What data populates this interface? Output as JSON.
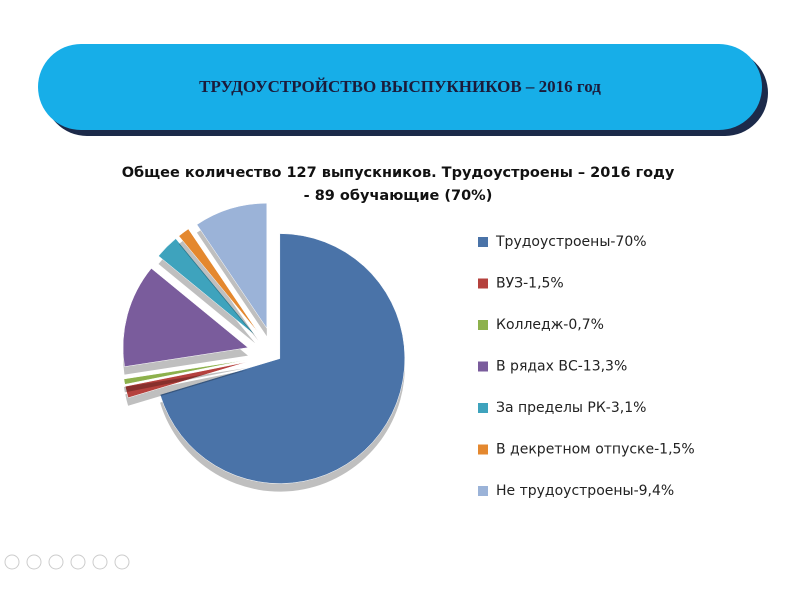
{
  "banner": "ТРУДОУСТРОЙСТВО ВЫСПУКНИКОВ – 2016 год",
  "chart_data": {
    "type": "pie",
    "title": [
      "Общее количество 127 выпускников.  Трудоустроены – 2016 году",
      "- 89 обучающие (70%)"
    ],
    "categories": [
      "Трудоустроены-70%",
      "ВУЗ-1,5%",
      "Колледж-0,7%",
      "В рядах ВС-13,3%",
      "За пределы РК-3,1%",
      "В декретном отпуске-1,5%",
      "Не трудоустроены-9,4%"
    ],
    "values": [
      70,
      1.5,
      0.7,
      13.3,
      3.1,
      1.5,
      9.4
    ],
    "colors": [
      "#4a73a8",
      "#b5413d",
      "#8db14c",
      "#7a5c9c",
      "#3ea3bd",
      "#e4882f",
      "#9bb3d8"
    ],
    "legend": "right"
  }
}
